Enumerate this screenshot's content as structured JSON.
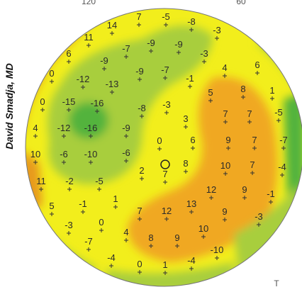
{
  "credit": "David Smadja, MD",
  "edge_labels": [
    "120",
    "60",
    "T"
  ],
  "values": [
    14,
    7,
    -5,
    -8,
    -3,
    11,
    -7,
    -9,
    -9,
    -3,
    6,
    -9,
    6,
    4,
    0,
    -12,
    -13,
    -9,
    -7,
    -1,
    5,
    8,
    1,
    0,
    -15,
    -16,
    -8,
    -3,
    3,
    7,
    7,
    -5,
    4,
    -12,
    -16,
    -9,
    0,
    6,
    9,
    7,
    -7,
    10,
    -6,
    -10,
    -6,
    8,
    10,
    7,
    -4,
    2,
    7,
    -5,
    -2,
    11,
    12,
    9,
    -1,
    5,
    -1,
    1,
    13,
    7,
    12,
    9,
    -3,
    -3,
    0,
    4,
    10,
    8,
    9,
    -7,
    -10,
    -4,
    0,
    1,
    -4
  ]
}
